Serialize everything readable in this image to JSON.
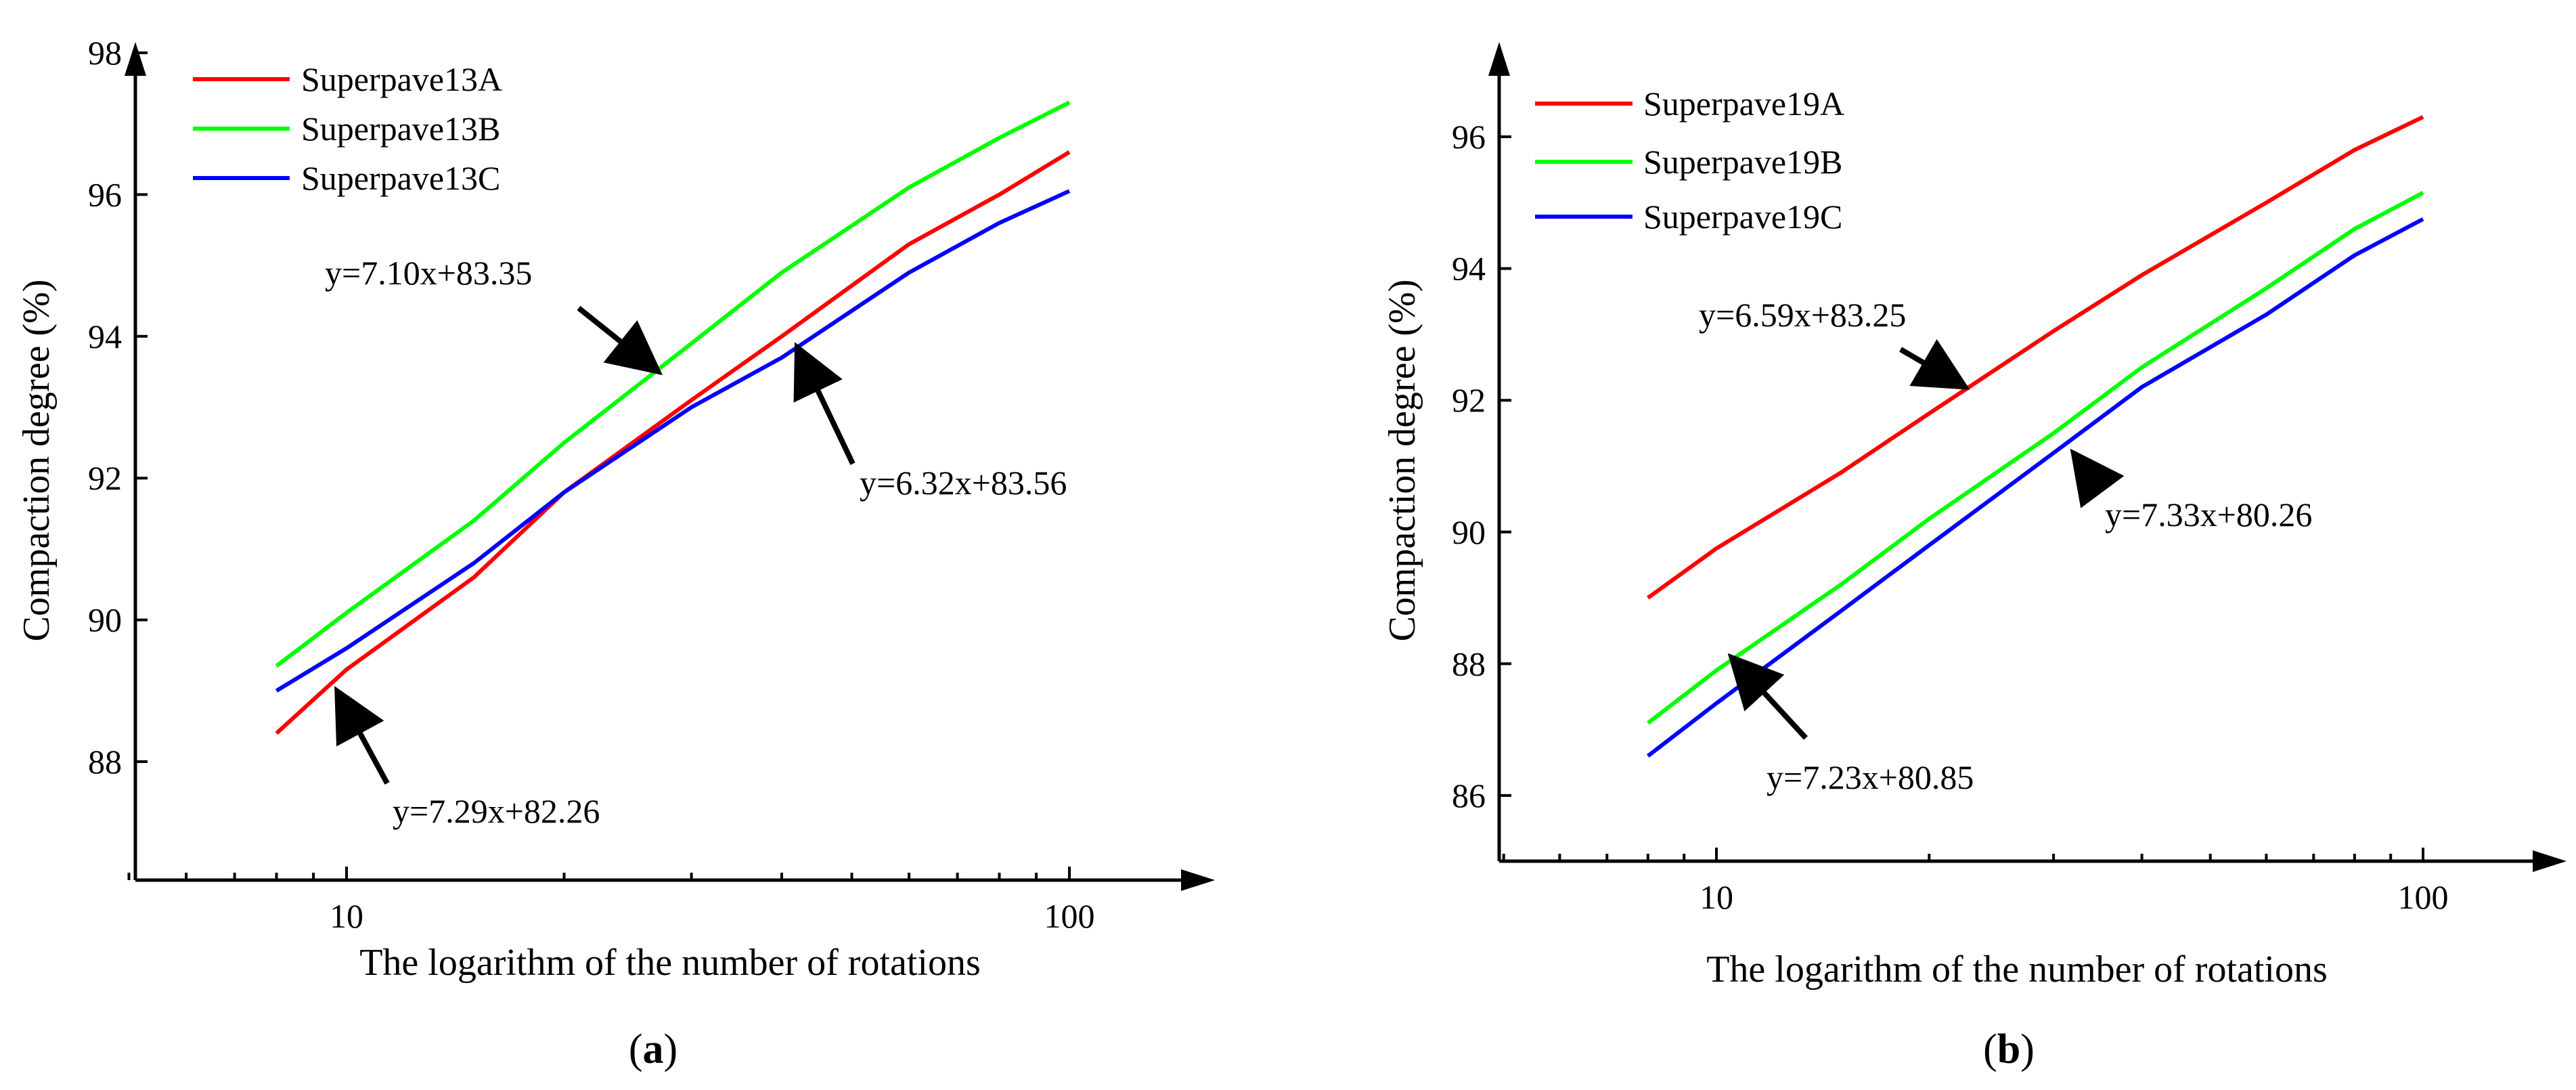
{
  "chart_data": [
    {
      "type": "line",
      "panel_label": "a",
      "panel_label_full": "(a)",
      "xscale": "log",
      "xlabel": "The logarithm of the number of rotations",
      "ylabel": "Compaction degree  (%)",
      "xlim": [
        5,
        150
      ],
      "ylim": [
        86.5,
        98
      ],
      "x_ticks": [
        10,
        100
      ],
      "x_tick_labels": [
        "10",
        "100"
      ],
      "y_ticks": [
        88,
        90,
        92,
        94,
        96,
        98
      ],
      "y_tick_labels": [
        "88",
        "90",
        "92",
        "94",
        "96",
        "98"
      ],
      "legend_position": "top-left",
      "series": [
        {
          "name": "Superpave13A",
          "color": "#ff0000",
          "x": [
            8,
            10,
            15,
            20,
            30,
            40,
            60,
            80,
            100
          ],
          "y": [
            88.4,
            89.3,
            90.6,
            91.8,
            93.1,
            94.0,
            95.3,
            96.0,
            96.6
          ]
        },
        {
          "name": "Superpave13B",
          "color": "#00ff00",
          "x": [
            8,
            10,
            15,
            20,
            30,
            40,
            60,
            80,
            100
          ],
          "y": [
            89.35,
            90.1,
            91.4,
            92.5,
            93.9,
            94.9,
            96.1,
            96.8,
            97.3
          ]
        },
        {
          "name": "Superpave13C",
          "color": "#0000ff",
          "x": [
            8,
            10,
            15,
            20,
            30,
            40,
            60,
            80,
            100
          ],
          "y": [
            89.0,
            89.6,
            90.8,
            91.8,
            93.0,
            93.7,
            94.9,
            95.6,
            96.05
          ]
        }
      ],
      "annotations": [
        {
          "text": "y=7.10x+83.35",
          "point": [
            27,
            93.5
          ]
        },
        {
          "text": "y=6.32x+83.56",
          "point": [
            42,
            93.85
          ]
        },
        {
          "text": "y=7.29x+82.26",
          "point": [
            9.7,
            89.0
          ]
        }
      ]
    },
    {
      "type": "line",
      "panel_label": "b",
      "panel_label_full": "(b)",
      "xscale": "log",
      "xlabel": "The logarithm of the number of rotations",
      "ylabel": "Compaction degree  (%)",
      "xlim": [
        5,
        150
      ],
      "ylim": [
        85,
        97
      ],
      "x_ticks": [
        10,
        100
      ],
      "x_tick_labels": [
        "10",
        "100"
      ],
      "y_ticks": [
        86,
        88,
        90,
        92,
        94,
        96
      ],
      "y_tick_labels": [
        "86",
        "88",
        "90",
        "92",
        "94",
        "96"
      ],
      "legend_position": "top-left",
      "series": [
        {
          "name": "Superpave19A",
          "color": "#ff0000",
          "x": [
            8,
            10,
            15,
            20,
            30,
            40,
            60,
            80,
            100
          ],
          "y": [
            89.0,
            89.75,
            90.9,
            91.8,
            93.05,
            93.9,
            95.0,
            95.8,
            96.3
          ]
        },
        {
          "name": "Superpave19B",
          "color": "#00ff00",
          "x": [
            8,
            10,
            15,
            20,
            30,
            40,
            60,
            80,
            100
          ],
          "y": [
            87.1,
            87.9,
            89.2,
            90.2,
            91.5,
            92.5,
            93.7,
            94.6,
            95.15
          ]
        },
        {
          "name": "Superpave19C",
          "color": "#0000ff",
          "x": [
            8,
            10,
            15,
            20,
            30,
            40,
            60,
            80,
            100
          ],
          "y": [
            86.6,
            87.4,
            88.8,
            89.8,
            91.2,
            92.2,
            93.3,
            94.2,
            94.75
          ]
        }
      ],
      "annotations": [
        {
          "text": "y=6.59x+83.25",
          "point": [
            22.5,
            92.2
          ]
        },
        {
          "text": "y=7.33x+80.26",
          "point": [
            32,
            91.2
          ]
        },
        {
          "text": "y=7.23x+80.85",
          "point": [
            10.5,
            88.1
          ]
        }
      ]
    }
  ]
}
